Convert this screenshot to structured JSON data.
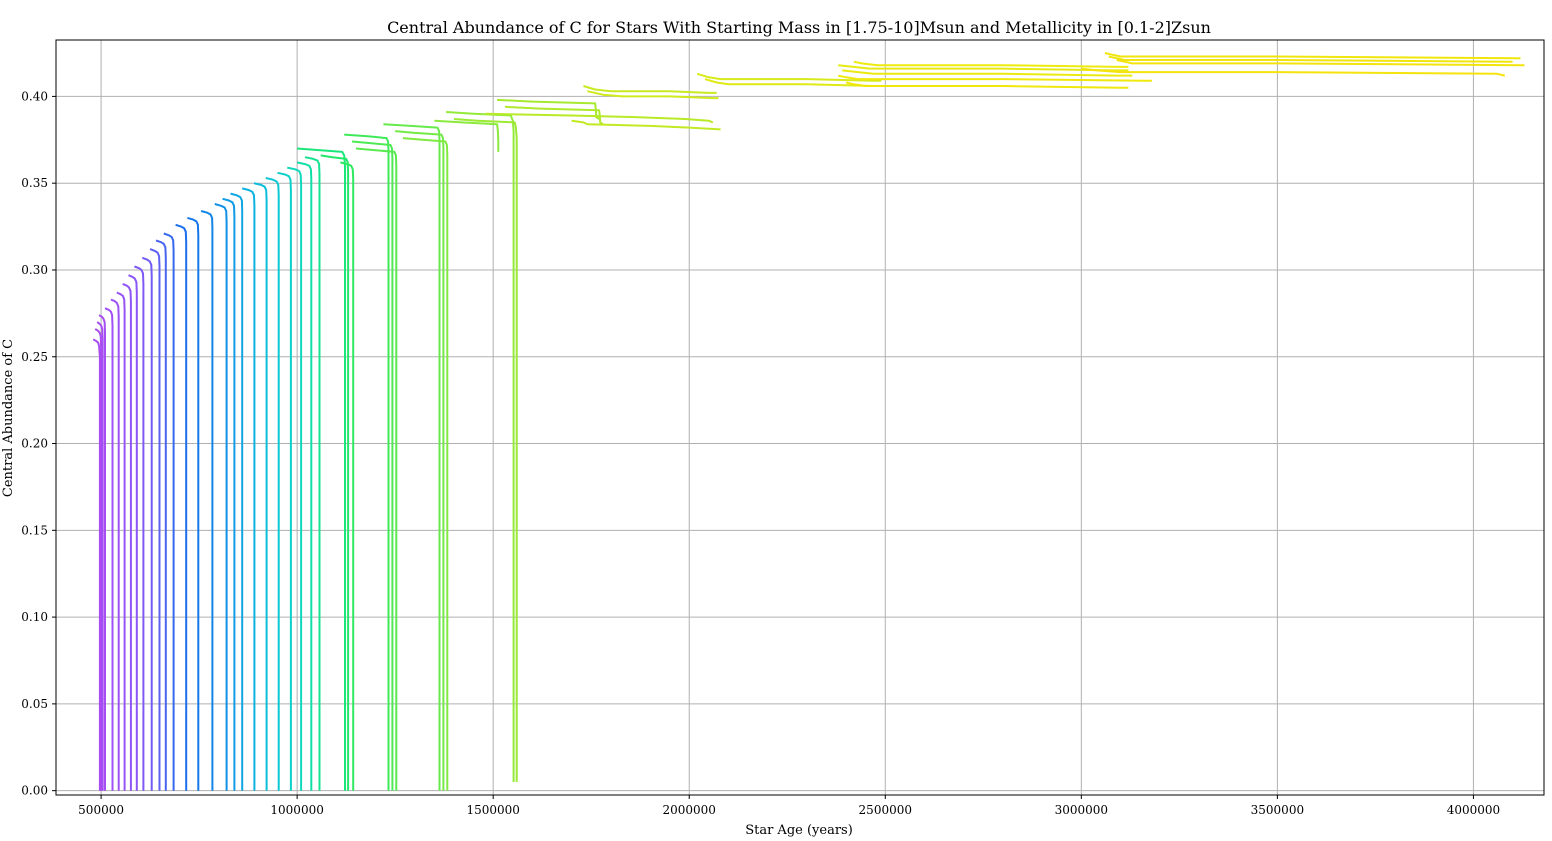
{
  "chart_data": {
    "type": "line",
    "title": "Central Abundance of C for Stars With Starting Mass in [1.75-10]Msun and Metallicity in [0.1-2]Zsun",
    "xlabel": "Star Age (years)",
    "ylabel": "Central Abundance of C",
    "xlim": [
      385000,
      4180000
    ],
    "ylim": [
      -0.0025,
      0.4325
    ],
    "xticks": [
      500000,
      1000000,
      1500000,
      2000000,
      2500000,
      3000000,
      3500000,
      4000000
    ],
    "xtick_labels": [
      "500000",
      "1000000",
      "1500000",
      "2000000",
      "2500000",
      "3000000",
      "3500000",
      "4000000"
    ],
    "yticks": [
      0.0,
      0.05,
      0.1,
      0.15,
      0.2,
      0.25,
      0.3,
      0.35,
      0.4
    ],
    "ytick_labels": [
      "0.00",
      "0.05",
      "0.10",
      "0.15",
      "0.20",
      "0.25",
      "0.30",
      "0.35",
      "0.40"
    ],
    "grid": true,
    "colormap": "purple-blue-cyan-green-yellow",
    "series": [
      {
        "color": "#a94cf0",
        "x": [
          480000,
          488000,
          493000,
          495000,
          497000,
          497000
        ],
        "y": [
          0.26,
          0.259,
          0.258,
          0.256,
          0.25,
          0.0
        ]
      },
      {
        "color": "#a94cf0",
        "x": [
          485000,
          492000,
          496000,
          499000,
          500000,
          500000
        ],
        "y": [
          0.266,
          0.265,
          0.264,
          0.262,
          0.256,
          0.0
        ]
      },
      {
        "color": "#a54ef3",
        "x": [
          490000,
          496000,
          500000,
          503000,
          504000,
          504000
        ],
        "y": [
          0.27,
          0.269,
          0.268,
          0.266,
          0.26,
          0.0
        ]
      },
      {
        "color": "#a54ef3",
        "x": [
          495000,
          502000,
          506000,
          509000,
          510000,
          510000
        ],
        "y": [
          0.274,
          0.273,
          0.272,
          0.27,
          0.264,
          0.0
        ]
      },
      {
        "color": "#a04ff4",
        "x": [
          510000,
          520000,
          525000,
          528000,
          529000,
          529000
        ],
        "y": [
          0.278,
          0.277,
          0.276,
          0.274,
          0.268,
          0.0
        ]
      },
      {
        "color": "#9b51f5",
        "x": [
          525000,
          535000,
          540000,
          544000,
          545000,
          545000
        ],
        "y": [
          0.283,
          0.282,
          0.281,
          0.279,
          0.273,
          0.0
        ]
      },
      {
        "color": "#9653f6",
        "x": [
          540000,
          550000,
          556000,
          559000,
          560000,
          560000
        ],
        "y": [
          0.287,
          0.286,
          0.285,
          0.283,
          0.277,
          0.0
        ]
      },
      {
        "color": "#9055f6",
        "x": [
          555000,
          565000,
          571000,
          575000,
          576000,
          576000
        ],
        "y": [
          0.292,
          0.291,
          0.29,
          0.288,
          0.282,
          0.0
        ]
      },
      {
        "color": "#8a57f6",
        "x": [
          570000,
          580000,
          586000,
          590000,
          591000,
          591000
        ],
        "y": [
          0.297,
          0.296,
          0.295,
          0.293,
          0.287,
          0.0
        ]
      },
      {
        "color": "#7e59f5",
        "x": [
          585000,
          597000,
          603000,
          607000,
          608000,
          608000
        ],
        "y": [
          0.302,
          0.301,
          0.3,
          0.298,
          0.292,
          0.0
        ]
      },
      {
        "color": "#705cf4",
        "x": [
          605000,
          617000,
          624000,
          628000,
          629000,
          629000
        ],
        "y": [
          0.307,
          0.306,
          0.305,
          0.303,
          0.297,
          0.0
        ]
      },
      {
        "color": "#5e60f2",
        "x": [
          625000,
          637000,
          644000,
          648000,
          649000,
          649000
        ],
        "y": [
          0.312,
          0.311,
          0.31,
          0.308,
          0.302,
          0.0
        ]
      },
      {
        "color": "#4b64f0",
        "x": [
          640000,
          653000,
          660000,
          664000,
          665000,
          665000
        ],
        "y": [
          0.317,
          0.316,
          0.315,
          0.313,
          0.307,
          0.0
        ]
      },
      {
        "color": "#3468ee",
        "x": [
          660000,
          673000,
          680000,
          684000,
          685000,
          685000
        ],
        "y": [
          0.321,
          0.32,
          0.319,
          0.317,
          0.311,
          0.0
        ]
      },
      {
        "color": "#1c6fec",
        "x": [
          690000,
          704000,
          712000,
          716000,
          717000,
          717000
        ],
        "y": [
          0.326,
          0.325,
          0.324,
          0.322,
          0.316,
          0.0
        ]
      },
      {
        "color": "#1577ea",
        "x": [
          720000,
          735000,
          743000,
          747000,
          748000,
          748000
        ],
        "y": [
          0.33,
          0.329,
          0.328,
          0.326,
          0.32,
          0.0
        ]
      },
      {
        "color": "#1285e8",
        "x": [
          755000,
          771000,
          779000,
          783000,
          784000,
          784000
        ],
        "y": [
          0.334,
          0.333,
          0.332,
          0.33,
          0.324,
          0.0
        ]
      },
      {
        "color": "#1090e6",
        "x": [
          790000,
          806000,
          815000,
          819000,
          820000,
          820000
        ],
        "y": [
          0.338,
          0.337,
          0.336,
          0.334,
          0.328,
          0.0
        ]
      },
      {
        "color": "#0f9be5",
        "x": [
          810000,
          826000,
          835000,
          839000,
          840000,
          840000
        ],
        "y": [
          0.341,
          0.34,
          0.339,
          0.337,
          0.331,
          0.0
        ]
      },
      {
        "color": "#0ea6e3",
        "x": [
          830000,
          846000,
          855000,
          859000,
          860000,
          860000
        ],
        "y": [
          0.344,
          0.343,
          0.342,
          0.34,
          0.334,
          0.0
        ]
      },
      {
        "color": "#0db2df",
        "x": [
          860000,
          877000,
          886000,
          890000,
          891000,
          891000
        ],
        "y": [
          0.347,
          0.346,
          0.345,
          0.343,
          0.337,
          0.0
        ]
      },
      {
        "color": "#0cbed9",
        "x": [
          890000,
          908000,
          917000,
          921000,
          922000,
          922000
        ],
        "y": [
          0.35,
          0.349,
          0.348,
          0.346,
          0.34,
          0.0
        ]
      },
      {
        "color": "#0cc8d2",
        "x": [
          920000,
          938000,
          948000,
          952000,
          953000,
          953000
        ],
        "y": [
          0.353,
          0.352,
          0.351,
          0.349,
          0.343,
          0.0
        ]
      },
      {
        "color": "#0dd1c8",
        "x": [
          950000,
          969000,
          979000,
          983000,
          984000,
          984000
        ],
        "y": [
          0.356,
          0.355,
          0.354,
          0.352,
          0.346,
          0.0
        ]
      },
      {
        "color": "#0fd8bb",
        "x": [
          975000,
          995000,
          1005000,
          1009000,
          1010000,
          1010000
        ],
        "y": [
          0.359,
          0.358,
          0.357,
          0.355,
          0.349,
          0.0
        ]
      },
      {
        "color": "#12dea8",
        "x": [
          1000000,
          1020000,
          1031000,
          1035000,
          1036000,
          1036000
        ],
        "y": [
          0.362,
          0.361,
          0.36,
          0.358,
          0.352,
          0.0
        ]
      },
      {
        "color": "#15e392",
        "x": [
          1020000,
          1041000,
          1052000,
          1056000,
          1057000,
          1057000
        ],
        "y": [
          0.365,
          0.364,
          0.363,
          0.361,
          0.355,
          0.0
        ]
      },
      {
        "color": "#1ae67a",
        "x": [
          1000000,
          1060000,
          1115000,
          1120000,
          1122000,
          1122000
        ],
        "y": [
          0.37,
          0.369,
          0.368,
          0.366,
          0.36,
          0.0
        ]
      },
      {
        "color": "#22e86a",
        "x": [
          1060000,
          1090000,
          1125000,
          1129000,
          1130000,
          1130000
        ],
        "y": [
          0.366,
          0.365,
          0.364,
          0.362,
          0.356,
          0.0
        ]
      },
      {
        "color": "#2fe960",
        "x": [
          1110000,
          1128000,
          1138000,
          1142000,
          1143000,
          1143000
        ],
        "y": [
          0.362,
          0.361,
          0.36,
          0.358,
          0.352,
          0.0
        ]
      },
      {
        "color": "#3fea58",
        "x": [
          1120000,
          1180000,
          1228000,
          1232000,
          1233000,
          1233000
        ],
        "y": [
          0.378,
          0.377,
          0.376,
          0.374,
          0.368,
          0.0
        ]
      },
      {
        "color": "#4dea53",
        "x": [
          1140000,
          1190000,
          1238000,
          1242000,
          1243000,
          1243000
        ],
        "y": [
          0.374,
          0.373,
          0.372,
          0.37,
          0.364,
          0.0
        ]
      },
      {
        "color": "#5aea4f",
        "x": [
          1150000,
          1200000,
          1248000,
          1252000,
          1253000,
          1253000
        ],
        "y": [
          0.37,
          0.369,
          0.368,
          0.366,
          0.36,
          0.0
        ]
      },
      {
        "color": "#67ea4b",
        "x": [
          1220000,
          1290000,
          1358000,
          1362000,
          1363000,
          1363000
        ],
        "y": [
          0.384,
          0.383,
          0.382,
          0.38,
          0.374,
          0.0
        ]
      },
      {
        "color": "#74ea47",
        "x": [
          1250000,
          1300000,
          1368000,
          1372000,
          1373000,
          1373000
        ],
        "y": [
          0.38,
          0.379,
          0.378,
          0.376,
          0.37,
          0.0
        ]
      },
      {
        "color": "#80ea42",
        "x": [
          1270000,
          1320000,
          1378000,
          1382000,
          1383000,
          1383000
        ],
        "y": [
          0.376,
          0.375,
          0.374,
          0.372,
          0.366,
          0.0
        ]
      },
      {
        "color": "#8aea3e",
        "x": [
          1350000,
          1420000,
          1510000,
          1512000,
          1513000,
          1513000
        ],
        "y": [
          0.386,
          0.385,
          0.384,
          0.38,
          0.374,
          0.368
        ]
      },
      {
        "color": "#94ea39",
        "x": [
          1380000,
          1450000,
          1545000,
          1550000,
          1552000,
          1552000
        ],
        "y": [
          0.391,
          0.39,
          0.389,
          0.386,
          0.38,
          0.005
        ]
      },
      {
        "color": "#9dea34",
        "x": [
          1400000,
          1460000,
          1555000,
          1558000,
          1560000,
          1560000
        ],
        "y": [
          0.387,
          0.386,
          0.385,
          0.382,
          0.376,
          0.005
        ]
      },
      {
        "color": "#a6ea30",
        "x": [
          1510000,
          1600000,
          1760000,
          1762000,
          1763000,
          1770000
        ],
        "y": [
          0.398,
          0.397,
          0.396,
          0.392,
          0.388,
          0.387
        ]
      },
      {
        "color": "#afea2c",
        "x": [
          1530000,
          1620000,
          1770000,
          1772000,
          1773000,
          1780000
        ],
        "y": [
          0.394,
          0.393,
          0.392,
          0.389,
          0.385,
          0.384
        ]
      },
      {
        "color": "#b8ea28",
        "x": [
          1480000,
          1700000,
          1870000,
          1990000,
          2050000,
          2060000
        ],
        "y": [
          0.39,
          0.389,
          0.388,
          0.387,
          0.386,
          0.385
        ]
      },
      {
        "color": "#c1ea24",
        "x": [
          1700000,
          1730000,
          1740000,
          1900000,
          2000000,
          2080000
        ],
        "y": [
          0.386,
          0.385,
          0.384,
          0.383,
          0.382,
          0.381
        ]
      },
      {
        "color": "#c9ea20",
        "x": [
          1730000,
          1760000,
          1800000,
          1950000,
          2050000,
          2070000
        ],
        "y": [
          0.406,
          0.404,
          0.403,
          0.403,
          0.402,
          0.402
        ]
      },
      {
        "color": "#d1ea1c",
        "x": [
          1740000,
          1780000,
          1830000,
          1950000,
          2060000,
          2075000
        ],
        "y": [
          0.403,
          0.401,
          0.4,
          0.4,
          0.399,
          0.399
        ]
      },
      {
        "color": "#d8ea18",
        "x": [
          2020000,
          2050000,
          2080000,
          2300000,
          2470000,
          2490000
        ],
        "y": [
          0.413,
          0.411,
          0.41,
          0.41,
          0.409,
          0.409
        ]
      },
      {
        "color": "#dfea15",
        "x": [
          2040000,
          2070000,
          2100000,
          2300000,
          2470000,
          2490000
        ],
        "y": [
          0.41,
          0.408,
          0.407,
          0.407,
          0.406,
          0.406
        ]
      },
      {
        "color": "#e5ea12",
        "x": [
          2380000,
          2420000,
          2460000,
          2800000,
          3080000,
          3120000
        ],
        "y": [
          0.418,
          0.417,
          0.416,
          0.416,
          0.415,
          0.415
        ]
      },
      {
        "color": "#eaea10",
        "x": [
          2390000,
          2430000,
          2470000,
          2800000,
          3090000,
          3130000
        ],
        "y": [
          0.415,
          0.414,
          0.413,
          0.413,
          0.412,
          0.412
        ]
      },
      {
        "color": "#edea0e",
        "x": [
          2420000,
          2440000,
          2480000,
          2800000,
          3100000,
          3120000
        ],
        "y": [
          0.42,
          0.419,
          0.418,
          0.418,
          0.417,
          0.417
        ]
      },
      {
        "color": "#f0e90d",
        "x": [
          2380000,
          2400000,
          2430000,
          2800000,
          3160000,
          3180000
        ],
        "y": [
          0.412,
          0.411,
          0.41,
          0.41,
          0.409,
          0.409
        ]
      },
      {
        "color": "#f0e70c",
        "x": [
          2400000,
          2420000,
          2450000,
          2800000,
          3100000,
          3120000
        ],
        "y": [
          0.408,
          0.407,
          0.406,
          0.406,
          0.405,
          0.405
        ]
      },
      {
        "color": "#f0e60c",
        "x": [
          3060000,
          3080000,
          3100000,
          3500000,
          4110000,
          4120000
        ],
        "y": [
          0.425,
          0.424,
          0.423,
          0.423,
          0.422,
          0.422
        ]
      },
      {
        "color": "#f0e50c",
        "x": [
          3070000,
          3090000,
          3110000,
          3500000,
          4090000,
          4100000
        ],
        "y": [
          0.423,
          0.422,
          0.421,
          0.421,
          0.42,
          0.42
        ]
      },
      {
        "color": "#f2e40c",
        "x": [
          3090000,
          3110000,
          3130000,
          3500000,
          4120000,
          4130000
        ],
        "y": [
          0.421,
          0.42,
          0.419,
          0.419,
          0.418,
          0.418
        ]
      },
      {
        "color": "#f4e30c",
        "x": [
          3000000,
          3040000,
          3100000,
          3500000,
          4060000,
          4080000
        ],
        "y": [
          0.416,
          0.415,
          0.414,
          0.414,
          0.413,
          0.412
        ]
      }
    ]
  }
}
